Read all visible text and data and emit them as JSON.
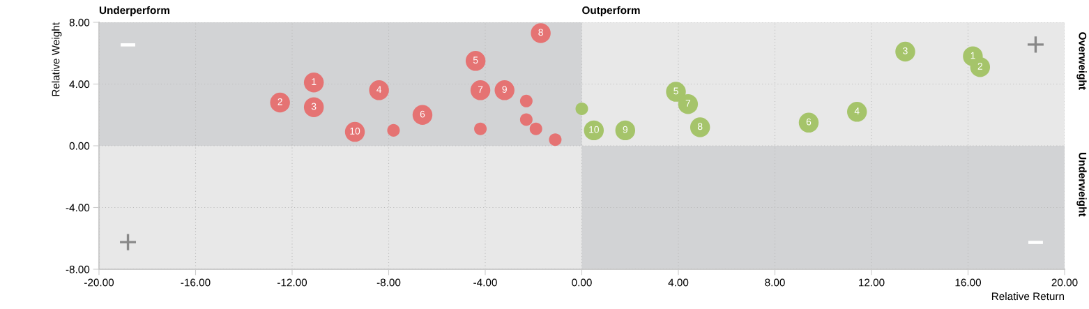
{
  "chart_data": {
    "type": "bubble",
    "xlabel": "Relative Return",
    "ylabel": "Relative Weight",
    "series": [
      {
        "color": "#e57373",
        "x": [
          -11.1,
          -12.5,
          -11.1,
          -8.4,
          -4.4,
          -6.6,
          -4.2,
          -1.7,
          -3.2,
          -9.4,
          -7.8,
          -4.2,
          -2.3,
          -2.3,
          -1.9,
          -1.1
        ],
        "values": [
          4.1,
          2.8,
          2.5,
          3.6,
          5.5,
          2.0,
          3.6,
          7.3,
          3.6,
          0.9,
          1.0,
          1.1,
          2.9,
          1.7,
          1.1,
          0.4
        ],
        "sizes": [
          1,
          1,
          1,
          1,
          1,
          1,
          1,
          1,
          1,
          1,
          0.4,
          0.4,
          0.4,
          0.4,
          0.4,
          0.4
        ]
      },
      {
        "color": "#a5c46a",
        "x": [
          16.2,
          16.5,
          13.4,
          11.4,
          3.9,
          9.4,
          4.4,
          4.9,
          1.8,
          0.5,
          0.0
        ],
        "values": [
          5.8,
          5.1,
          6.1,
          2.2,
          3.5,
          1.5,
          2.7,
          1.2,
          1.0,
          1.0,
          2.4
        ],
        "sizes": [
          1,
          1,
          1,
          1,
          1,
          1,
          1,
          1,
          1,
          1,
          0.4
        ]
      }
    ],
    "xlim": [
      -20,
      20
    ],
    "ylim": [
      -8,
      8
    ],
    "xticks": [
      {
        "value": -20,
        "label": "-20.00"
      },
      {
        "value": -16,
        "label": "-16.00"
      },
      {
        "value": -12,
        "label": "-12.00"
      },
      {
        "value": -8,
        "label": "-8.00"
      },
      {
        "value": -4,
        "label": "-4.00"
      },
      {
        "value": 0,
        "label": "0.00"
      },
      {
        "value": 4,
        "label": "4.00"
      },
      {
        "value": 8,
        "label": "8.00"
      },
      {
        "value": 12,
        "label": "12.00"
      },
      {
        "value": 16,
        "label": "16.00"
      },
      {
        "value": 20,
        "label": "20.00"
      }
    ],
    "yticks": [
      {
        "value": -8,
        "label": "-8.00"
      },
      {
        "value": -4,
        "label": "-4.00"
      },
      {
        "value": 0,
        "label": "0.00"
      },
      {
        "value": 4,
        "label": "4.00"
      },
      {
        "value": 8,
        "label": "8.00"
      }
    ],
    "grid": true,
    "annotations": [
      "Underperform",
      "Outperform",
      "Overweight",
      "Underweight",
      "−",
      "+",
      "+",
      "−",
      {
        "text": "1",
        "x": -11.1,
        "y": 4.1
      },
      {
        "text": "2",
        "x": -12.5,
        "y": 2.8
      },
      {
        "text": "3",
        "x": -11.1,
        "y": 2.5
      },
      {
        "text": "4",
        "x": -8.4,
        "y": 3.6
      },
      {
        "text": "5",
        "x": -4.4,
        "y": 5.5
      },
      {
        "text": "6",
        "x": -6.6,
        "y": 2.0
      },
      {
        "text": "7",
        "x": -4.2,
        "y": 3.6
      },
      {
        "text": "8",
        "x": -1.7,
        "y": 7.3
      },
      {
        "text": "9",
        "x": -3.2,
        "y": 3.6
      },
      {
        "text": "10",
        "x": -9.4,
        "y": 0.9
      },
      {
        "text": "1",
        "x": 16.2,
        "y": 5.8
      },
      {
        "text": "2",
        "x": 16.5,
        "y": 5.1
      },
      {
        "text": "3",
        "x": 13.4,
        "y": 6.1
      },
      {
        "text": "4",
        "x": 11.4,
        "y": 2.2
      },
      {
        "text": "5",
        "x": 3.9,
        "y": 3.5
      },
      {
        "text": "6",
        "x": 9.4,
        "y": 1.5
      },
      {
        "text": "7",
        "x": 4.4,
        "y": 2.7
      },
      {
        "text": "8",
        "x": 4.9,
        "y": 1.2
      },
      {
        "text": "9",
        "x": 1.8,
        "y": 1.0
      },
      {
        "text": "10",
        "x": 0.5,
        "y": 1.0
      }
    ]
  }
}
